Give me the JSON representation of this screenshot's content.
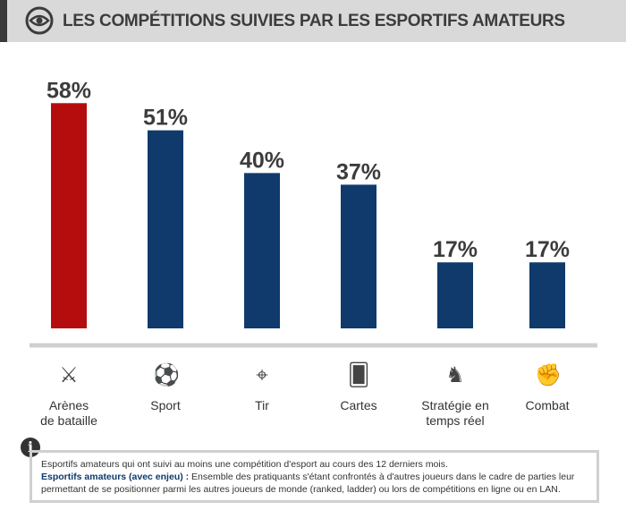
{
  "header": {
    "title": "LES COMPÉTITIONS SUIVIES PAR LES ESPORTIFS AMATEURS",
    "icon": "eye-icon"
  },
  "chart_data": {
    "type": "bar",
    "categories": [
      "Arènes de bataille",
      "Sport",
      "Tir",
      "Cartes",
      "Stratégie en temps réel",
      "Combat"
    ],
    "category_lines": [
      [
        "Arènes",
        "de bataille"
      ],
      [
        "Sport"
      ],
      [
        "Tir"
      ],
      [
        "Cartes"
      ],
      [
        "Stratégie en",
        "temps réel"
      ],
      [
        "Combat"
      ]
    ],
    "values": [
      58,
      51,
      40,
      37,
      17,
      17
    ],
    "data_labels": [
      "58%",
      "51%",
      "40%",
      "37%",
      "17%",
      "17%"
    ],
    "colors": [
      "#b50d0d",
      "#0f3a6b",
      "#0f3a6b",
      "#0f3a6b",
      "#0f3a6b",
      "#0f3a6b"
    ],
    "icons": [
      "crossed-swords-icon",
      "soccer-ball-icon",
      "crosshair-icon",
      "cards-icon",
      "chess-knight-icon",
      "fist-icon"
    ],
    "ylim": [
      0,
      60
    ],
    "grid": false
  },
  "note": {
    "line1": "Esportifs amateurs qui ont suivi au moins une compétition d'esport au cours des 12 derniers mois.",
    "term": "Esportifs amateurs (avec enjeu) :",
    "definition": " Ensemble des pratiquants s'étant confrontés à d'autres joueurs dans le cadre de parties leur permettant de se positionner parmi les autres joueurs de monde (ranked, ladder) ou lors de compétitions en ligne ou en LAN.",
    "icon_letter": "i"
  }
}
